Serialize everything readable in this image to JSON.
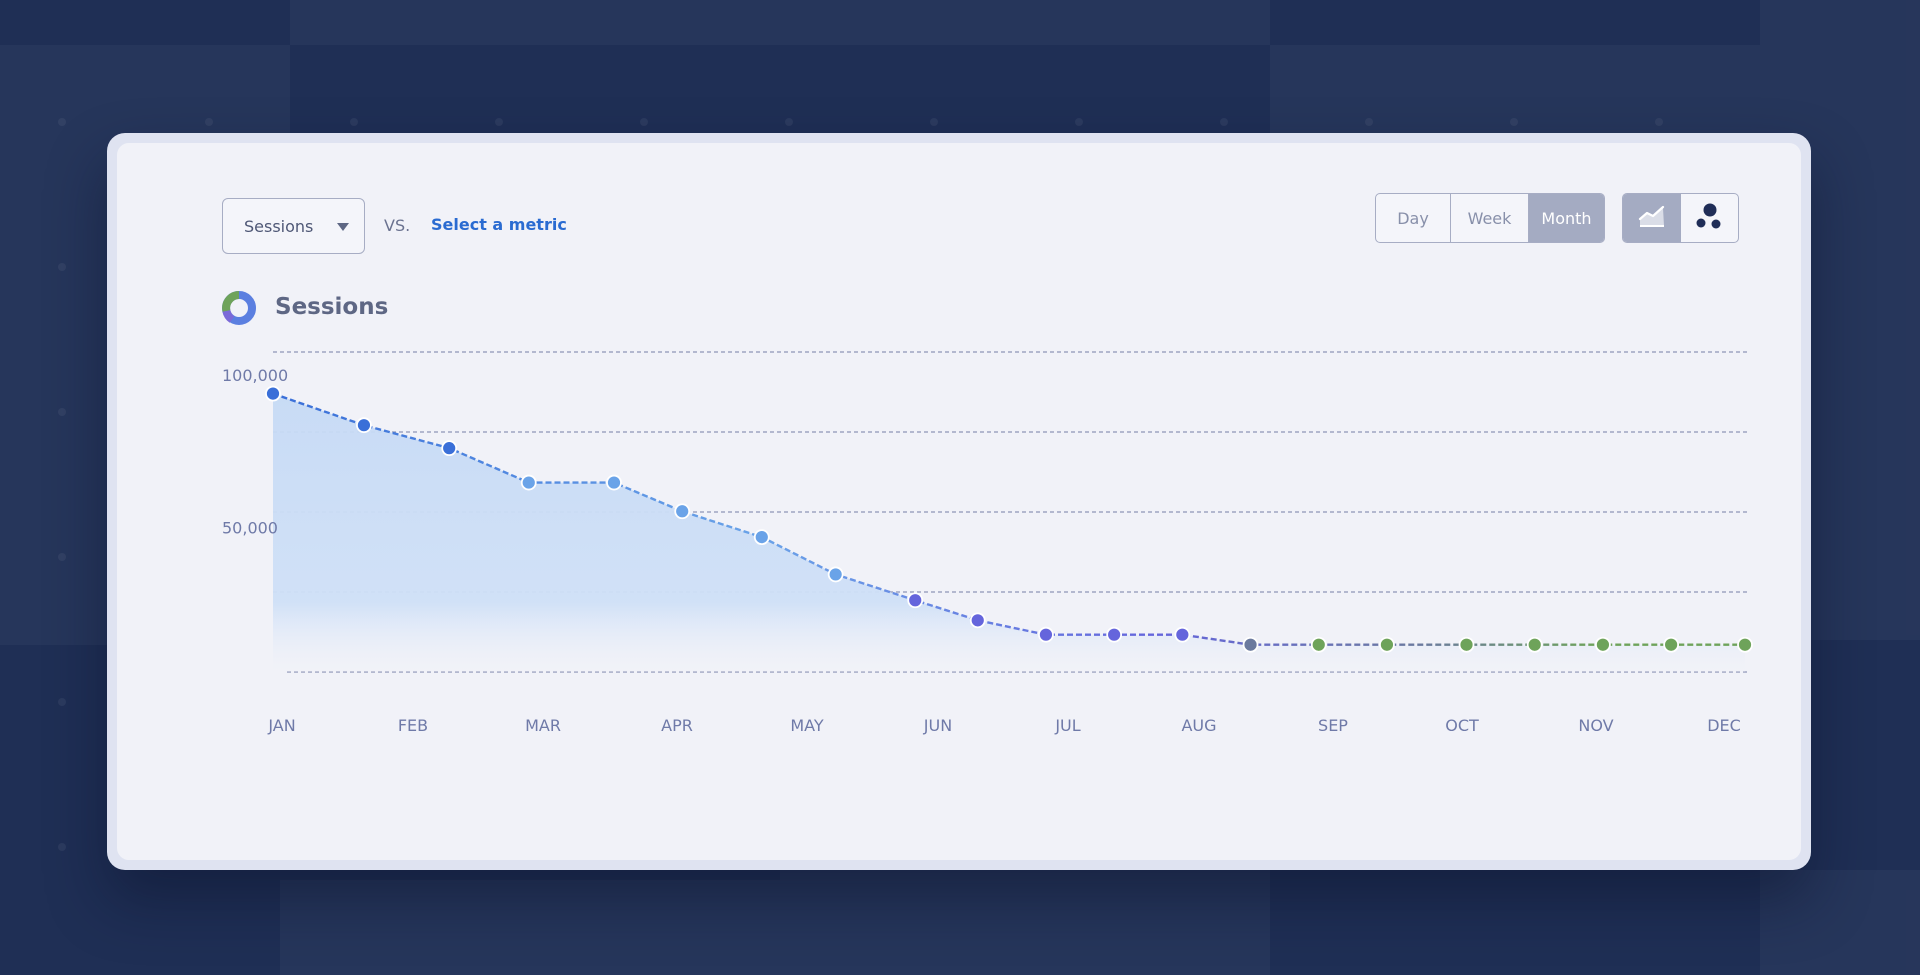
{
  "controls": {
    "metric_select": {
      "value": "Sessions"
    },
    "vs_label": "VS.",
    "compare_link": "Select a metric"
  },
  "period_options": [
    {
      "label": "Day",
      "active": false
    },
    {
      "label": "Week",
      "active": false
    },
    {
      "label": "Month",
      "active": true
    }
  ],
  "view_options": [
    {
      "name": "area-chart-icon",
      "active": true
    },
    {
      "name": "bubble-chart-icon",
      "active": false
    }
  ],
  "legend": {
    "title": "Sessions"
  },
  "colors": {
    "start": "#3a6fd8",
    "mid": "#6aa3e8",
    "purple": "#6565dc",
    "slate": "#6b7a9e",
    "green": "#6ea35a",
    "fill": "#c6daf5",
    "gridline": "#8e96b6",
    "tick": "#6f7aa8"
  },
  "chart_data": {
    "type": "area",
    "categories": [
      "JAN",
      "FEB",
      "MAR",
      "APR",
      "MAY",
      "JUN",
      "JUL",
      "AUG",
      "SEP",
      "OCT",
      "NOV",
      "DEC"
    ],
    "y_ticks": [
      {
        "label": "100,000",
        "value": 100000
      },
      {
        "label": "50,000",
        "value": 50000
      }
    ],
    "x": [
      0.0,
      0.8,
      1.55,
      2.25,
      3.0,
      3.6,
      4.3,
      4.95,
      5.65,
      6.2,
      6.8,
      7.4,
      8.0,
      8.6,
      9.2,
      9.8,
      10.5,
      11.1,
      11.7,
      12.3,
      12.95
    ],
    "values": [
      97000,
      86000,
      78000,
      66000,
      66000,
      56000,
      47000,
      34000,
      25000,
      18000,
      13000,
      13000,
      13000,
      9500,
      9500,
      9500,
      9500,
      9500,
      9500,
      9500,
      9500
    ],
    "ylim": [
      0,
      100000
    ],
    "grid": true
  }
}
